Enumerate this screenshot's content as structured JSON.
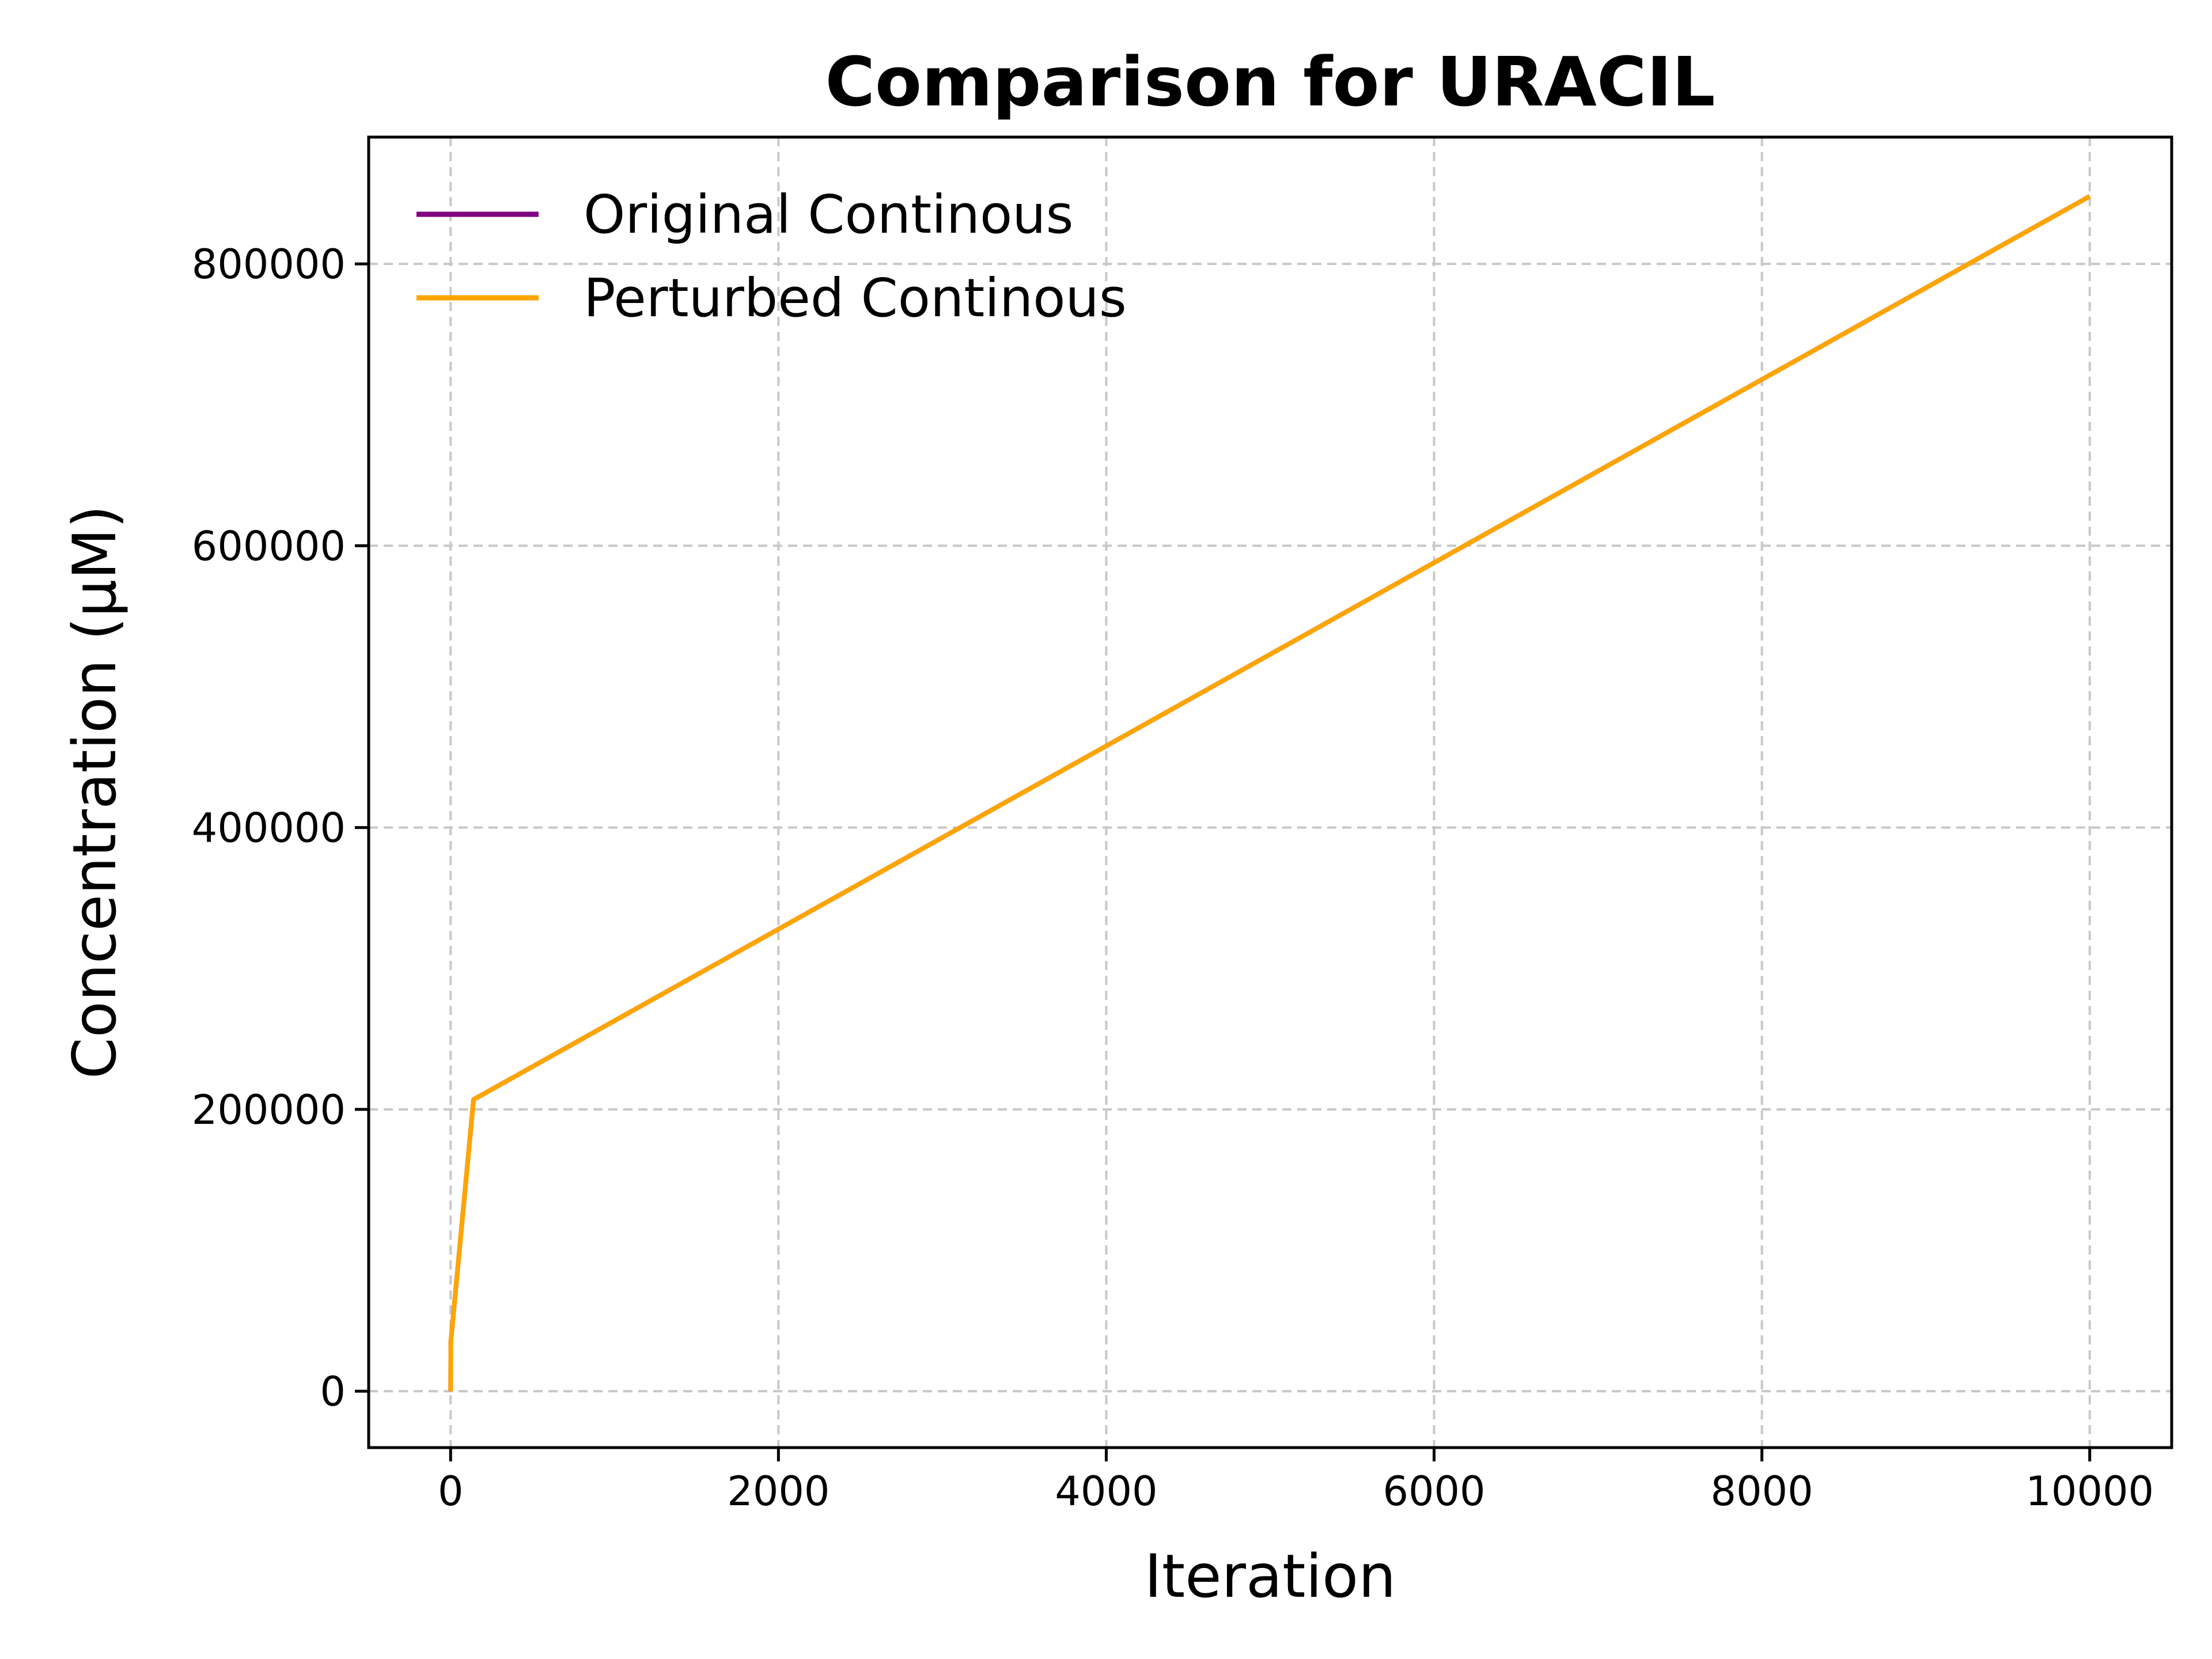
{
  "chart_data": {
    "type": "line",
    "title": "Comparison for URACIL",
    "xlabel": "Iteration",
    "ylabel": "Concentration (μM)",
    "xlim": [
      -500,
      10500
    ],
    "ylim": [
      -40000,
      890000
    ],
    "xticks": [
      0,
      2000,
      4000,
      6000,
      8000,
      10000
    ],
    "xtick_labels": [
      "0",
      "2000",
      "4000",
      "6000",
      "8000",
      "10000"
    ],
    "yticks": [
      0,
      200000,
      400000,
      600000,
      800000
    ],
    "ytick_labels": [
      "0",
      "200000",
      "400000",
      "600000",
      "800000"
    ],
    "grid": true,
    "legend": "top-left",
    "series": [
      {
        "name": "Original Continous",
        "color": "#800080",
        "x": [
          0,
          1,
          140,
          10000
        ],
        "y": [
          0,
          35000,
          207000,
          848000
        ]
      },
      {
        "name": "Perturbed Continous",
        "color": "#FFA500",
        "x": [
          0,
          1,
          140,
          10000
        ],
        "y": [
          0,
          35000,
          207000,
          848000
        ]
      }
    ]
  }
}
